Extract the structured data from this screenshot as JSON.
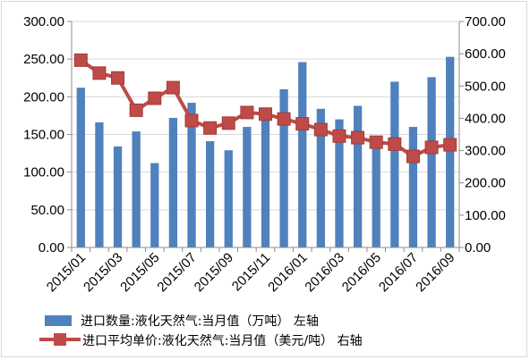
{
  "chart_data": {
    "type": "bar+line",
    "categories": [
      "2015/01",
      "2015/02",
      "2015/03",
      "2015/04",
      "2015/05",
      "2015/06",
      "2015/07",
      "2015/08",
      "2015/09",
      "2015/10",
      "2015/11",
      "2015/12",
      "2016/01",
      "2016/02",
      "2016/03",
      "2016/04",
      "2016/05",
      "2016/06",
      "2016/07",
      "2016/08",
      "2016/09"
    ],
    "x_tick_labels": [
      "2015/01",
      "2015/03",
      "2015/05",
      "2015/07",
      "2015/09",
      "2015/11",
      "2016/01",
      "2016/03",
      "2016/05",
      "2016/07",
      "2016/09"
    ],
    "series": [
      {
        "name": "进口数量:液化天然气:当月值（万吨） 左轴",
        "type": "bar",
        "axis": "left",
        "color": "#4f81bd",
        "values": [
          212,
          166,
          134,
          154,
          112,
          172,
          192,
          141,
          129,
          160,
          180,
          210,
          246,
          184,
          170,
          188,
          146,
          220,
          160,
          226,
          253
        ]
      },
      {
        "name": "进口平均单价:液化天然气:当月值（美元/吨） 右轴",
        "type": "line",
        "axis": "right",
        "color": "#be4b48",
        "values": [
          580,
          540,
          525,
          425,
          462,
          495,
          393,
          370,
          385,
          418,
          413,
          398,
          383,
          365,
          345,
          340,
          326,
          320,
          282,
          310,
          318
        ]
      }
    ],
    "y_left": {
      "min": 0,
      "max": 300,
      "ticks": [
        "0.00",
        "50.00",
        "100.00",
        "150.00",
        "200.00",
        "250.00",
        "300.00"
      ]
    },
    "y_right": {
      "min": 0,
      "max": 700,
      "ticks": [
        "0.00",
        "100.00",
        "200.00",
        "300.00",
        "400.00",
        "500.00",
        "600.00",
        "700.00"
      ]
    },
    "grid": true,
    "legend_position": "bottom"
  }
}
